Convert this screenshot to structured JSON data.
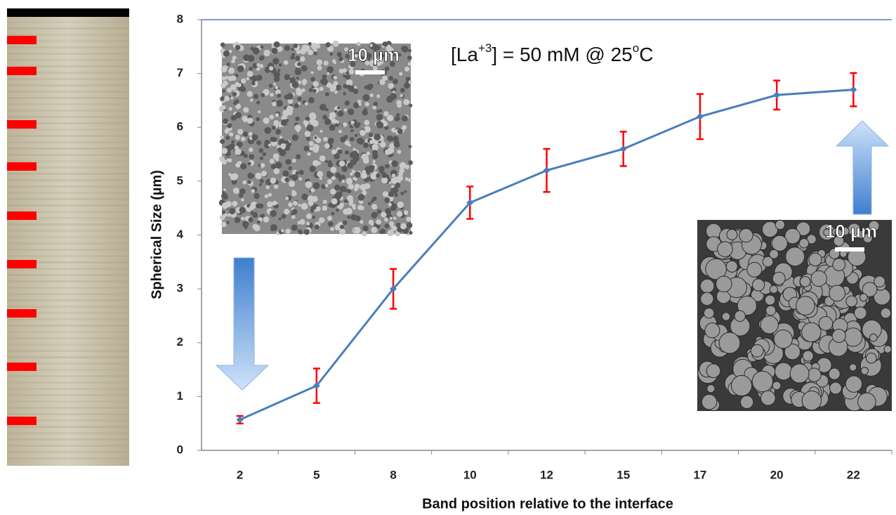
{
  "chart_data": {
    "type": "line",
    "annotation": {
      "parts": [
        "[La",
        "+3",
        "] = 50 mM @ 25",
        "o",
        "C"
      ]
    },
    "x_label": "Band position relative to the interface",
    "y_label": "Spherical Size (µm)",
    "categories": [
      "2",
      "5",
      "8",
      "10",
      "12",
      "15",
      "17",
      "20",
      "22"
    ],
    "values": [
      0.57,
      1.2,
      3.0,
      4.6,
      5.2,
      5.6,
      6.2,
      6.6,
      6.7
    ],
    "errors": [
      0.07,
      0.32,
      0.37,
      0.3,
      0.4,
      0.32,
      0.42,
      0.27,
      0.31
    ],
    "color": "#4a7ebb",
    "error_color": "#ff0000",
    "ylim": [
      0,
      8
    ],
    "yticks": [
      0,
      1,
      2,
      3,
      4,
      5,
      6,
      7,
      8
    ],
    "insets": [
      {
        "scale_label": "10 µm"
      },
      {
        "scale_label": "10 µm"
      }
    ]
  }
}
